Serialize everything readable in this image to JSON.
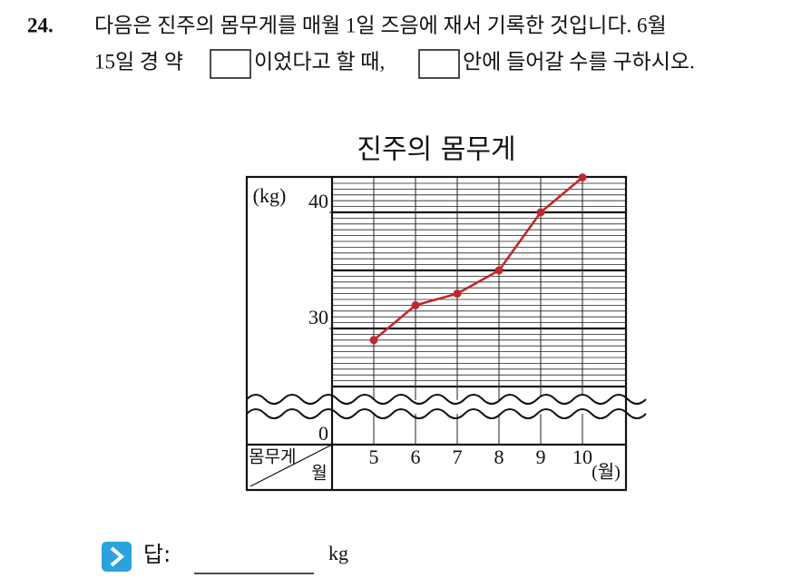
{
  "question": {
    "number": "24.",
    "line1": "다음은 진주의 몸무게를 매월 1일 즈음에 재서 기록한 것입니다. 6월",
    "line2_before": "15일 경 약",
    "line2_middle": "이었다고 할 때,",
    "line2_after": "안에 들어갈 수를 구하시오."
  },
  "chart_data": {
    "type": "line",
    "title": "진주의 몸무게",
    "y_unit": "(kg)",
    "x_unit": "(월)",
    "corner_value": "몸무게",
    "corner_category": "월",
    "categories": [
      "5",
      "6",
      "7",
      "8",
      "9",
      "10"
    ],
    "series": [
      {
        "color": "#c0282d",
        "values": [
          29,
          32,
          33,
          35,
          40,
          43
        ]
      }
    ],
    "ylim": [
      25,
      43
    ],
    "yticks": [
      0,
      30,
      40
    ],
    "axis_break": true,
    "grid": true
  },
  "answer": {
    "label": "답:",
    "unit": "kg"
  }
}
